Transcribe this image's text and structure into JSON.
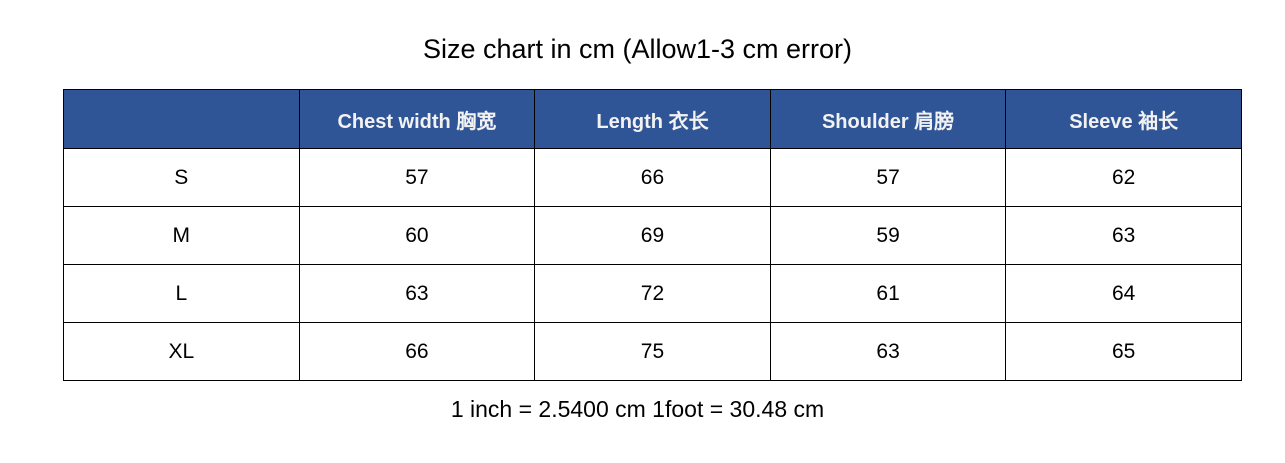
{
  "title": "Size chart in cm (Allow1-3 cm error)",
  "header_color": "#2F5597",
  "columns": [
    "",
    "Chest width  胸宽",
    "Length  衣长",
    "Shoulder  肩膀",
    "Sleeve  袖长"
  ],
  "rows": [
    [
      "S",
      "57",
      "66",
      "57",
      "62"
    ],
    [
      "M",
      "60",
      "69",
      "59",
      "63"
    ],
    [
      "L",
      "63",
      "72",
      "61",
      "64"
    ],
    [
      "XL",
      "66",
      "75",
      "63",
      "65"
    ]
  ],
  "note": "1 inch = 2.5400 cm 1foot = 30.48 cm"
}
